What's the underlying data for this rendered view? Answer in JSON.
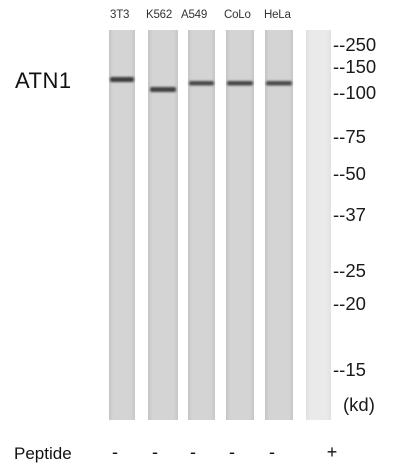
{
  "lanes": [
    {
      "label": "3T3",
      "band": true
    },
    {
      "label": "K562",
      "band": true
    },
    {
      "label": "A549",
      "band": true
    },
    {
      "label": "CoLo",
      "band": true
    },
    {
      "label": "HeLa",
      "band": true
    },
    {
      "label": "",
      "band": false
    }
  ],
  "protein_label": "ATN1",
  "markers": [
    "--250",
    "--150",
    "--100",
    "--75",
    "--50",
    "--37",
    "--25",
    "--20",
    "--15"
  ],
  "unit_label": "(kd)",
  "peptide": {
    "label": "Peptide",
    "signs": [
      "-",
      "-",
      "-",
      "-",
      "-",
      "+"
    ]
  },
  "colors": {
    "lane_background": "#d2d2d2",
    "band": "#3a3a3a",
    "background": "#ffffff"
  }
}
